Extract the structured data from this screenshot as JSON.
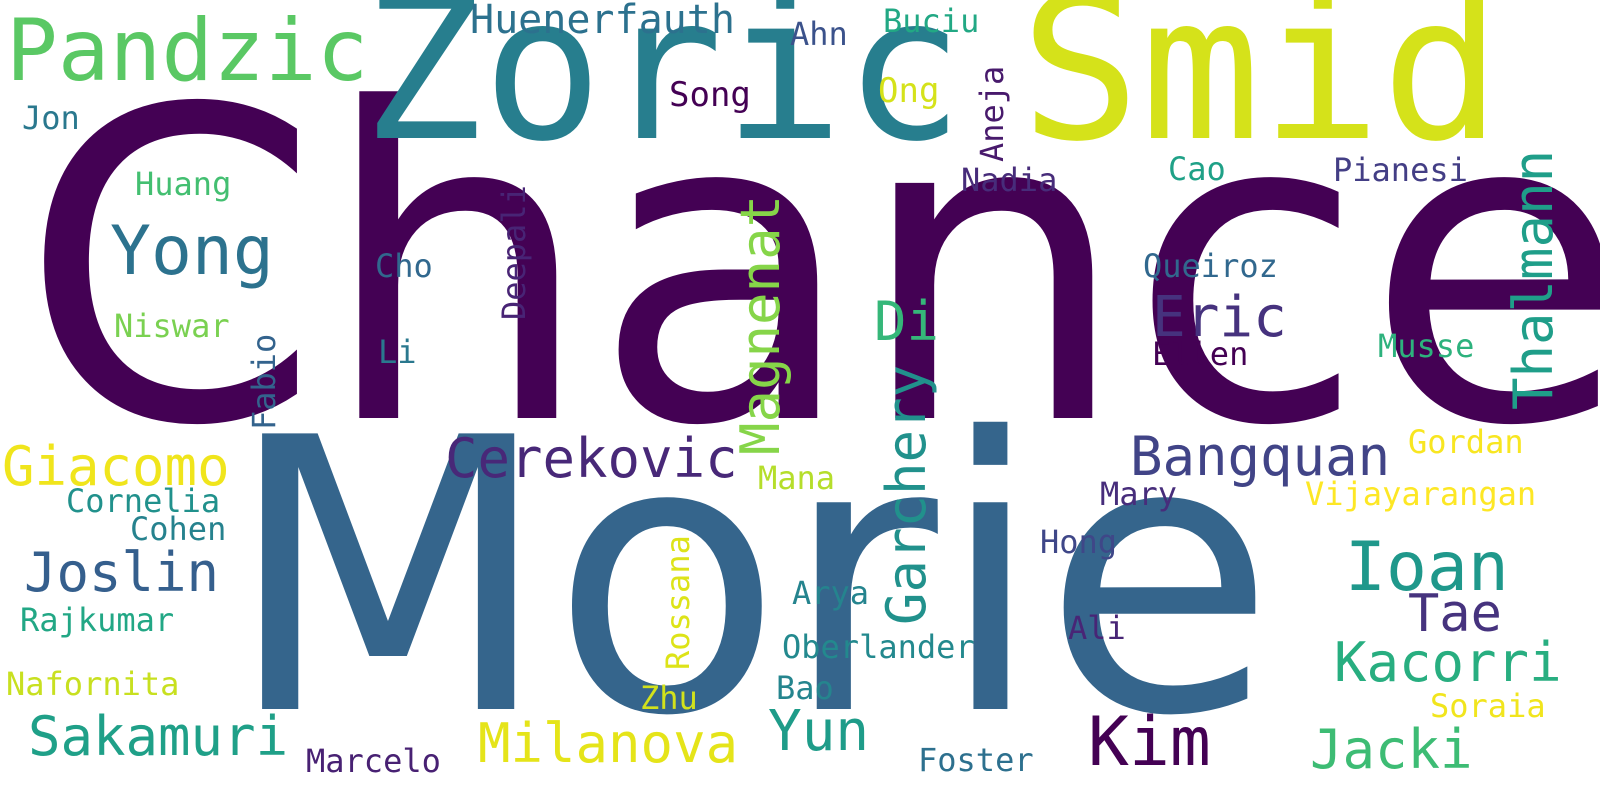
{
  "words": [
    {
      "text": "Chance",
      "color": "#440154"
    },
    {
      "text": "Morie",
      "color": "#35658c"
    },
    {
      "text": "Zoric",
      "color": "#277e8e"
    },
    {
      "text": "Smid",
      "color": "#d5e21a"
    },
    {
      "text": "Pandzic",
      "color": "#5ac864"
    },
    {
      "text": "Huenerfauth",
      "color": "#2c718e"
    },
    {
      "text": "Buciu",
      "color": "#22a884"
    },
    {
      "text": "Ahn",
      "color": "#3b528b"
    },
    {
      "text": "Song",
      "color": "#440154"
    },
    {
      "text": "Ong",
      "color": "#d5e21a"
    },
    {
      "text": "Aneja",
      "color": "#481a6c"
    },
    {
      "text": "Jon",
      "color": "#2a788e"
    },
    {
      "text": "Huang",
      "color": "#43bf71"
    },
    {
      "text": "Nadia",
      "color": "#472c7a"
    },
    {
      "text": "Cao",
      "color": "#1fa187"
    },
    {
      "text": "Pianesi",
      "color": "#433e85"
    },
    {
      "text": "Thalmann",
      "color": "#1f9e89"
    },
    {
      "text": "Yong",
      "color": "#2c728e"
    },
    {
      "text": "Cho",
      "color": "#31688e"
    },
    {
      "text": "Deepali",
      "color": "#482475"
    },
    {
      "text": "Magnenat",
      "color": "#86d549"
    },
    {
      "text": "Queiroz",
      "color": "#31688e"
    },
    {
      "text": "Eric",
      "color": "#46327e"
    },
    {
      "text": "Niswar",
      "color": "#7ad151"
    },
    {
      "text": "Di",
      "color": "#35b779"
    },
    {
      "text": "Li",
      "color": "#2a788e"
    },
    {
      "text": "Ellen",
      "color": "#440154"
    },
    {
      "text": "Musse",
      "color": "#2db27d"
    },
    {
      "text": "Fabio",
      "color": "#33638d"
    },
    {
      "text": "Garchery",
      "color": "#21918c"
    },
    {
      "text": "Giacomo",
      "color": "#f0e51c"
    },
    {
      "text": "Cerekovic",
      "color": "#482878"
    },
    {
      "text": "Bangquan",
      "color": "#414487"
    },
    {
      "text": "Gordan",
      "color": "#f8e621"
    },
    {
      "text": "Mana",
      "color": "#b5de2b"
    },
    {
      "text": "Mary",
      "color": "#472d7b"
    },
    {
      "text": "Vijayarangan",
      "color": "#fde725"
    },
    {
      "text": "Cornelia",
      "color": "#21918c"
    },
    {
      "text": "Cohen",
      "color": "#26828e"
    },
    {
      "text": "Hong",
      "color": "#3f4788"
    },
    {
      "text": "Ioan",
      "color": "#1f988b"
    },
    {
      "text": "Joslin",
      "color": "#355f8d"
    },
    {
      "text": "Rossana",
      "color": "#dde318"
    },
    {
      "text": "Arya",
      "color": "#25848e"
    },
    {
      "text": "Tae",
      "color": "#46337e"
    },
    {
      "text": "Rajkumar",
      "color": "#22a785"
    },
    {
      "text": "Ali",
      "color": "#482576"
    },
    {
      "text": "Oberlander",
      "color": "#23898e"
    },
    {
      "text": "Kacorri",
      "color": "#28ae80"
    },
    {
      "text": "Nafornita",
      "color": "#c8e020"
    },
    {
      "text": "Zhu",
      "color": "#d2e21b"
    },
    {
      "text": "Bao",
      "color": "#25858e"
    },
    {
      "text": "Soraia",
      "color": "#f1e51d"
    },
    {
      "text": "Sakamuri",
      "color": "#1fa088"
    },
    {
      "text": "Milanova",
      "color": "#e5e419"
    },
    {
      "text": "Yun",
      "color": "#1e9c89"
    },
    {
      "text": "Kim",
      "color": "#440154"
    },
    {
      "text": "Jacki",
      "color": "#3dbc74"
    },
    {
      "text": "Marcelo",
      "color": "#482173"
    },
    {
      "text": "Foster",
      "color": "#2d708e"
    }
  ]
}
